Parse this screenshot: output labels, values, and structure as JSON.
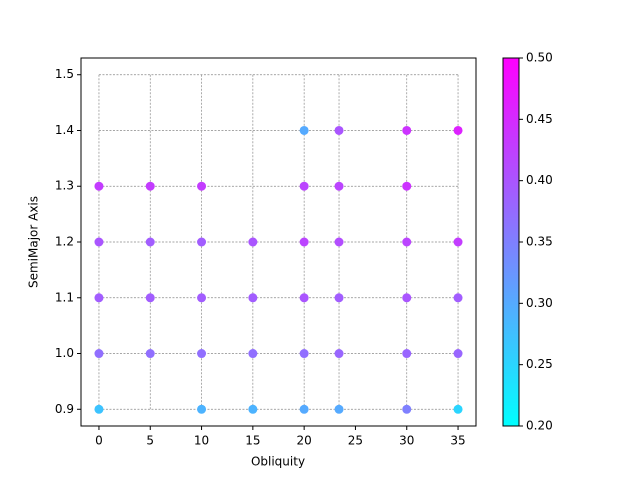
{
  "chart_data": {
    "type": "scatter",
    "xlabel": "Obliquity",
    "ylabel": "SemiMajor Axis",
    "x": [
      0,
      0,
      0,
      0,
      0,
      5,
      5,
      5,
      5,
      10,
      10,
      10,
      10,
      10,
      15,
      15,
      15,
      15,
      20,
      20,
      20,
      20,
      20,
      20,
      23.4,
      23.4,
      23.4,
      23.4,
      23.4,
      23.4,
      30,
      30,
      30,
      30,
      30,
      30,
      35,
      35,
      35,
      35,
      35
    ],
    "y": [
      0.9,
      1.0,
      1.1,
      1.2,
      1.3,
      1.0,
      1.1,
      1.2,
      1.3,
      0.9,
      1.0,
      1.1,
      1.2,
      1.3,
      0.9,
      1.0,
      1.1,
      1.2,
      0.9,
      1.0,
      1.1,
      1.2,
      1.3,
      1.4,
      0.9,
      1.0,
      1.1,
      1.2,
      1.3,
      1.4,
      0.9,
      1.0,
      1.1,
      1.2,
      1.3,
      1.4,
      0.9,
      1.0,
      1.1,
      1.2,
      1.4
    ],
    "c": [
      0.27,
      0.37,
      0.39,
      0.4,
      0.43,
      0.37,
      0.39,
      0.39,
      0.43,
      0.29,
      0.37,
      0.39,
      0.39,
      0.43,
      0.29,
      0.37,
      0.39,
      0.4,
      0.3,
      0.37,
      0.4,
      0.42,
      0.42,
      0.3,
      0.3,
      0.38,
      0.39,
      0.41,
      0.42,
      0.4,
      0.35,
      0.38,
      0.4,
      0.42,
      0.44,
      0.44,
      0.25,
      0.38,
      0.39,
      0.43,
      0.46
    ],
    "colormap": "cool",
    "xlim": [
      -1.75,
      36.75
    ],
    "ylim": [
      0.87,
      1.53
    ],
    "xticks": [
      0,
      5,
      10,
      15,
      20,
      25,
      30,
      35
    ],
    "yticks": [
      0.9,
      {
        "value": 1.0,
        "label": "1.0"
      },
      1.1,
      1.2,
      1.3,
      1.4,
      1.5
    ],
    "grid_x": [
      0,
      5,
      10,
      15,
      20,
      23.4,
      30,
      35
    ],
    "clim": [
      0.2,
      0.5
    ],
    "cticks": [
      {
        "value": 0.2,
        "label": "0.20"
      },
      0.25,
      {
        "value": 0.3,
        "label": "0.30"
      },
      0.35,
      {
        "value": 0.4,
        "label": "0.40"
      },
      0.45,
      {
        "value": 0.5,
        "label": "0.50"
      }
    ]
  }
}
